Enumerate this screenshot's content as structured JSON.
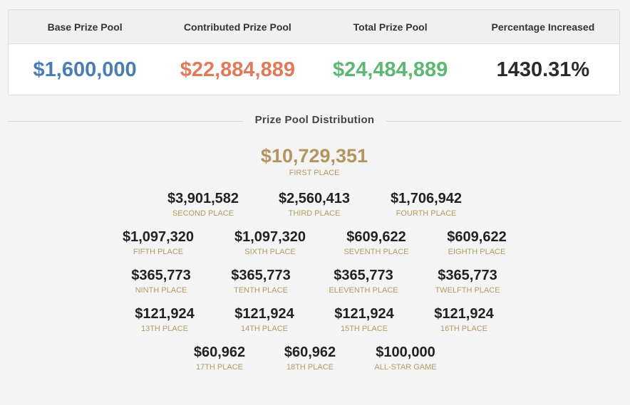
{
  "summary": {
    "headers": [
      "Base Prize Pool",
      "Contributed Prize Pool",
      "Total Prize Pool",
      "Percentage Increased"
    ],
    "values": [
      "$1,600,000",
      "$22,884,889",
      "$24,484,889",
      "1430.31%"
    ],
    "colors": {
      "base": "#4a7db5",
      "contributed": "#e07a58",
      "total": "#5cb873",
      "percentage": "#2b2b2b"
    }
  },
  "distribution": {
    "title": "Prize Pool Distribution",
    "places": [
      {
        "amount": "$10,729,351",
        "label": "FIRST PLACE"
      },
      {
        "amount": "$3,901,582",
        "label": "SECOND PLACE"
      },
      {
        "amount": "$2,560,413",
        "label": "THIRD PLACE"
      },
      {
        "amount": "$1,706,942",
        "label": "FOURTH PLACE"
      },
      {
        "amount": "$1,097,320",
        "label": "FIFTH PLACE"
      },
      {
        "amount": "$1,097,320",
        "label": "SIXTH PLACE"
      },
      {
        "amount": "$609,622",
        "label": "SEVENTH PLACE"
      },
      {
        "amount": "$609,622",
        "label": "EIGHTH PLACE"
      },
      {
        "amount": "$365,773",
        "label": "NINTH PLACE"
      },
      {
        "amount": "$365,773",
        "label": "TENTH PLACE"
      },
      {
        "amount": "$365,773",
        "label": "ELEVENTH PLACE"
      },
      {
        "amount": "$365,773",
        "label": "TWELFTH PLACE"
      },
      {
        "amount": "$121,924",
        "label": "13TH PLACE"
      },
      {
        "amount": "$121,924",
        "label": "14TH PLACE"
      },
      {
        "amount": "$121,924",
        "label": "15TH PLACE"
      },
      {
        "amount": "$121,924",
        "label": "16TH PLACE"
      },
      {
        "amount": "$60,962",
        "label": "17TH PLACE"
      },
      {
        "amount": "$60,962",
        "label": "18TH PLACE"
      },
      {
        "amount": "$100,000",
        "label": "ALL-STAR GAME"
      }
    ],
    "accent_color": "#b49560"
  }
}
